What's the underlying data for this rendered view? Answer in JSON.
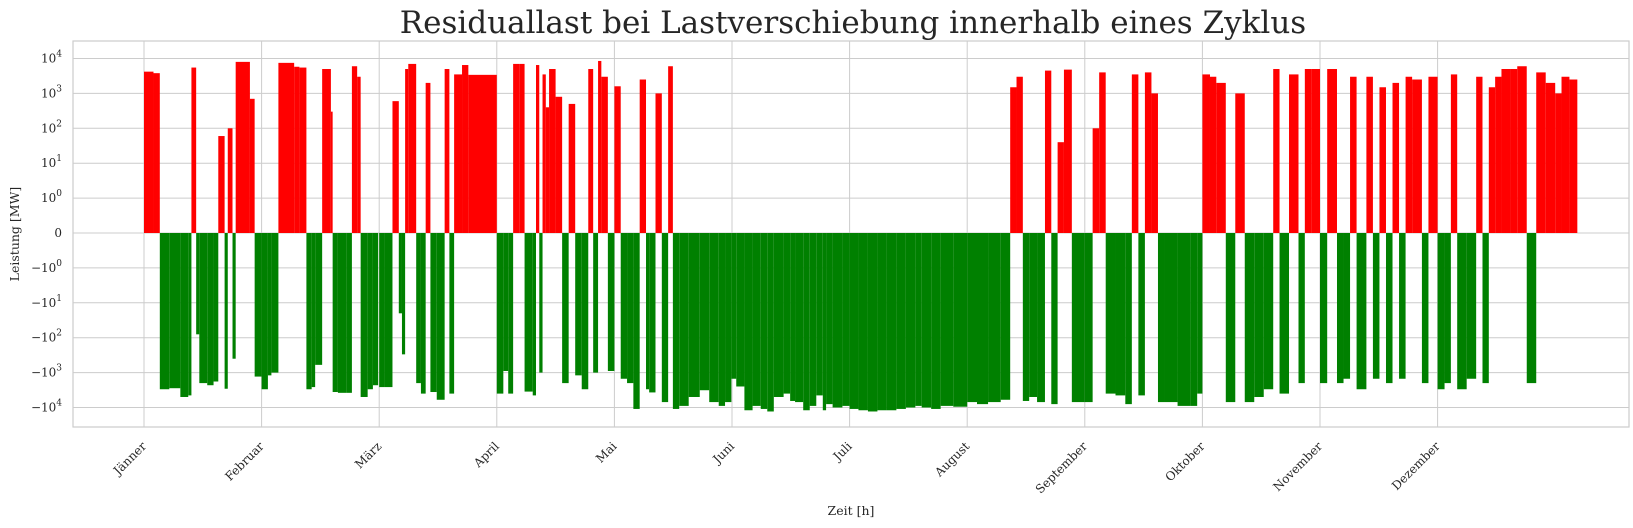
{
  "chart_data": {
    "type": "bar",
    "title": "Residuallast bei Lastverschiebung innerhalb eines Zyklus",
    "xlabel": "Zeit [h]",
    "ylabel": "Leistung [MW]",
    "yscale": "symlog",
    "ylim": [
      -20000,
      30000
    ],
    "grid": true,
    "colors": {
      "positive": "#ff0000",
      "negative": "#008000",
      "grid": "#cccccc",
      "text": "#262626"
    },
    "y_ticks": [
      {
        "base": "10",
        "exp": "4",
        "sign": ""
      },
      {
        "base": "10",
        "exp": "3",
        "sign": ""
      },
      {
        "base": "10",
        "exp": "2",
        "sign": ""
      },
      {
        "base": "10",
        "exp": "1",
        "sign": ""
      },
      {
        "base": "10",
        "exp": "0",
        "sign": ""
      },
      {
        "base": "0",
        "exp": "",
        "sign": ""
      },
      {
        "base": "10",
        "exp": "0",
        "sign": "−"
      },
      {
        "base": "10",
        "exp": "1",
        "sign": "−"
      },
      {
        "base": "10",
        "exp": "2",
        "sign": "−"
      },
      {
        "base": "10",
        "exp": "3",
        "sign": "−"
      },
      {
        "base": "10",
        "exp": "4",
        "sign": "−"
      }
    ],
    "y_tick_values": [
      10000,
      1000,
      100,
      10,
      1,
      0,
      -1,
      -10,
      -100,
      -1000,
      -10000
    ],
    "month_labels": [
      "Jänner",
      "Februar",
      "März",
      "April",
      "Mai",
      "Juni",
      "Juli",
      "August",
      "September",
      "Oktober",
      "November",
      "Dezember"
    ],
    "month_start_hours": [
      0,
      744,
      1416,
      2160,
      2880,
      3624,
      4344,
      5088,
      5832,
      6552,
      7296,
      8016
    ],
    "x_range_hours": [
      -440,
      9300
    ],
    "segments": [
      [
        0,
        60,
        4200
      ],
      [
        60,
        100,
        3800
      ],
      [
        100,
        160,
        -3000
      ],
      [
        160,
        230,
        -2800
      ],
      [
        230,
        280,
        -5000
      ],
      [
        280,
        300,
        -4500
      ],
      [
        300,
        330,
        5500
      ],
      [
        330,
        350,
        -80
      ],
      [
        350,
        400,
        -2000
      ],
      [
        400,
        440,
        -2300
      ],
      [
        440,
        470,
        -1800
      ],
      [
        470,
        510,
        60
      ],
      [
        510,
        530,
        -2900
      ],
      [
        530,
        560,
        100
      ],
      [
        560,
        580,
        -400
      ],
      [
        580,
        670,
        8000
      ],
      [
        670,
        700,
        700
      ],
      [
        700,
        744,
        -1300
      ],
      [
        744,
        780,
        -3000
      ],
      [
        780,
        800,
        -1200
      ],
      [
        800,
        840,
        -1000
      ],
      [
        840,
        930,
        7500
      ],
      [
        930,
        960,
        5800
      ],
      [
        960,
        1000,
        5500
      ],
      [
        1000,
        1030,
        -3000
      ],
      [
        1030,
        1050,
        -2600
      ],
      [
        1050,
        1090,
        -600
      ],
      [
        1090,
        1140,
        5000
      ],
      [
        1140,
        1150,
        300
      ],
      [
        1150,
        1180,
        -3600
      ],
      [
        1180,
        1230,
        -3800
      ],
      [
        1230,
        1260,
        -3800
      ],
      [
        1260,
        1290,
        6000
      ],
      [
        1290,
        1310,
        3000
      ],
      [
        1310,
        1350,
        -5000
      ],
      [
        1350,
        1380,
        -3000
      ],
      [
        1380,
        1410,
        -2300
      ],
      [
        1416,
        1450,
        -2600
      ],
      [
        1450,
        1500,
        -2600
      ],
      [
        1500,
        1540,
        600
      ],
      [
        1540,
        1560,
        -20
      ],
      [
        1560,
        1580,
        -300
      ],
      [
        1580,
        1600,
        5000
      ],
      [
        1600,
        1650,
        7000
      ],
      [
        1650,
        1680,
        -2000
      ],
      [
        1680,
        1710,
        -4000
      ],
      [
        1710,
        1740,
        2000
      ],
      [
        1740,
        1780,
        -3600
      ],
      [
        1780,
        1830,
        -6000
      ],
      [
        1830,
        1860,
        5000
      ],
      [
        1860,
        1890,
        -4000
      ],
      [
        1890,
        1940,
        3500
      ],
      [
        1940,
        1980,
        6500
      ],
      [
        1980,
        2160,
        3400
      ],
      [
        2160,
        2200,
        -4000
      ],
      [
        2200,
        2230,
        -900
      ],
      [
        2230,
        2260,
        -4000
      ],
      [
        2260,
        2300,
        7000
      ],
      [
        2300,
        2330,
        7000
      ],
      [
        2330,
        2380,
        -3500
      ],
      [
        2380,
        2400,
        -4500
      ],
      [
        2400,
        2420,
        6500
      ],
      [
        2420,
        2440,
        -1000
      ],
      [
        2440,
        2460,
        3500
      ],
      [
        2460,
        2480,
        400
      ],
      [
        2480,
        2520,
        5000
      ],
      [
        2520,
        2560,
        800
      ],
      [
        2560,
        2600,
        -2000
      ],
      [
        2600,
        2640,
        500
      ],
      [
        2640,
        2680,
        -1200
      ],
      [
        2680,
        2720,
        -3000
      ],
      [
        2720,
        2750,
        5000
      ],
      [
        2750,
        2780,
        -1000
      ],
      [
        2780,
        2800,
        8500
      ],
      [
        2800,
        2840,
        3000
      ],
      [
        2840,
        2880,
        -900
      ],
      [
        2880,
        2920,
        1600
      ],
      [
        2920,
        2960,
        -1500
      ],
      [
        2960,
        3000,
        -2000
      ],
      [
        3000,
        3040,
        -11000
      ],
      [
        3040,
        3080,
        2500
      ],
      [
        3080,
        3100,
        -3000
      ],
      [
        3100,
        3140,
        -3700
      ],
      [
        3140,
        3180,
        1000
      ],
      [
        3180,
        3220,
        -7000
      ],
      [
        3220,
        3250,
        6000
      ],
      [
        3250,
        3290,
        -11000
      ],
      [
        3290,
        3350,
        -9000
      ],
      [
        3350,
        3420,
        -5000
      ],
      [
        3420,
        3480,
        -3200
      ],
      [
        3480,
        3540,
        -7000
      ],
      [
        3540,
        3580,
        -9000
      ],
      [
        3580,
        3620,
        -7000
      ],
      [
        3620,
        3650,
        -1500
      ],
      [
        3650,
        3700,
        -2500
      ],
      [
        3700,
        3750,
        -12000
      ],
      [
        3750,
        3800,
        -9000
      ],
      [
        3800,
        3840,
        -11000
      ],
      [
        3840,
        3880,
        -13000
      ],
      [
        3880,
        3940,
        -5000
      ],
      [
        3940,
        3980,
        -4000
      ],
      [
        3980,
        4010,
        -6500
      ],
      [
        4010,
        4060,
        -7000
      ],
      [
        4060,
        4100,
        -12000
      ],
      [
        4100,
        4140,
        -9000
      ],
      [
        4140,
        4180,
        -4500
      ],
      [
        4180,
        4200,
        -12000
      ],
      [
        4200,
        4240,
        -8000
      ],
      [
        4240,
        4300,
        -10000
      ],
      [
        4300,
        4344,
        -9000
      ],
      [
        4344,
        4400,
        -11000
      ],
      [
        4400,
        4460,
        -12000
      ],
      [
        4460,
        4520,
        -13000
      ],
      [
        4520,
        4580,
        -12000
      ],
      [
        4580,
        4640,
        -12000
      ],
      [
        4640,
        4700,
        -11000
      ],
      [
        4700,
        4760,
        -10000
      ],
      [
        4760,
        4800,
        -9000
      ],
      [
        4800,
        4860,
        -10000
      ],
      [
        4860,
        4920,
        -11000
      ],
      [
        4920,
        5000,
        -9000
      ],
      [
        5000,
        5088,
        -9500
      ],
      [
        5088,
        5150,
        -7000
      ],
      [
        5150,
        5220,
        -8000
      ],
      [
        5220,
        5300,
        -7000
      ],
      [
        5300,
        5360,
        -6000
      ],
      [
        5360,
        5400,
        1500
      ],
      [
        5400,
        5440,
        3000
      ],
      [
        5440,
        5480,
        -6500
      ],
      [
        5480,
        5530,
        -5000
      ],
      [
        5530,
        5580,
        -7000
      ],
      [
        5580,
        5620,
        4500
      ],
      [
        5620,
        5660,
        -8000
      ],
      [
        5660,
        5700,
        40
      ],
      [
        5700,
        5750,
        4800
      ],
      [
        5750,
        5832,
        -7000
      ],
      [
        5832,
        5880,
        -7000
      ],
      [
        5880,
        5920,
        100
      ],
      [
        5920,
        5960,
        4000
      ],
      [
        5960,
        6020,
        -4000
      ],
      [
        6020,
        6080,
        -4500
      ],
      [
        6080,
        6120,
        -8000
      ],
      [
        6120,
        6160,
        3500
      ],
      [
        6160,
        6200,
        -4500
      ],
      [
        6200,
        6240,
        4000
      ],
      [
        6240,
        6280,
        1000
      ],
      [
        6280,
        6320,
        -7000
      ],
      [
        6320,
        6400,
        -7000
      ],
      [
        6400,
        6480,
        -9000
      ],
      [
        6480,
        6520,
        -9000
      ],
      [
        6520,
        6552,
        -4000
      ],
      [
        6552,
        6600,
        3500
      ],
      [
        6600,
        6640,
        3000
      ],
      [
        6640,
        6700,
        2000
      ],
      [
        6700,
        6760,
        -7000
      ],
      [
        6760,
        6820,
        1000
      ],
      [
        6820,
        6880,
        -7000
      ],
      [
        6880,
        6940,
        -5000
      ],
      [
        6940,
        7000,
        -3000
      ],
      [
        7000,
        7040,
        5000
      ],
      [
        7040,
        7100,
        -4000
      ],
      [
        7100,
        7160,
        3500
      ],
      [
        7160,
        7200,
        -2000
      ],
      [
        7200,
        7240,
        5000
      ],
      [
        7240,
        7296,
        5000
      ],
      [
        7296,
        7340,
        -2000
      ],
      [
        7340,
        7400,
        5000
      ],
      [
        7400,
        7440,
        -2000
      ],
      [
        7440,
        7480,
        -1500
      ],
      [
        7480,
        7520,
        3000
      ],
      [
        7520,
        7580,
        -3000
      ],
      [
        7580,
        7620,
        3000
      ],
      [
        7620,
        7660,
        -1500
      ],
      [
        7660,
        7700,
        1500
      ],
      [
        7700,
        7740,
        -2000
      ],
      [
        7740,
        7780,
        2000
      ],
      [
        7780,
        7820,
        -1500
      ],
      [
        7820,
        7860,
        3000
      ],
      [
        7860,
        7920,
        2500
      ],
      [
        7920,
        7960,
        -2000
      ],
      [
        7960,
        8016,
        3000
      ],
      [
        8016,
        8060,
        -3000
      ],
      [
        8060,
        8100,
        -2000
      ],
      [
        8100,
        8140,
        3500
      ],
      [
        8140,
        8200,
        -3000
      ],
      [
        8200,
        8260,
        -1500
      ],
      [
        8260,
        8300,
        3000
      ],
      [
        8300,
        8340,
        -2000
      ],
      [
        8340,
        8380,
        1500
      ],
      [
        8380,
        8420,
        3000
      ],
      [
        8420,
        8480,
        5000
      ],
      [
        8480,
        8520,
        5000
      ],
      [
        8520,
        8580,
        6000
      ],
      [
        8580,
        8640,
        -2000
      ],
      [
        8640,
        8700,
        4000
      ],
      [
        8700,
        8760,
        2000
      ],
      [
        8760,
        8800,
        1000
      ],
      [
        8800,
        8850,
        3000
      ],
      [
        8850,
        8900,
        2500
      ]
    ]
  }
}
